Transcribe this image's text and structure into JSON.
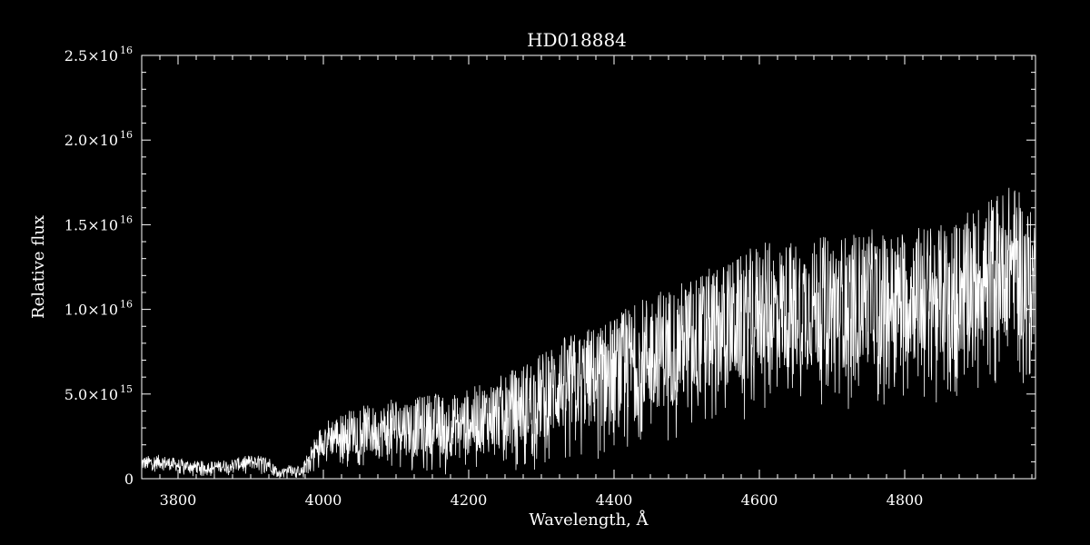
{
  "chart_data": {
    "type": "line",
    "title": "HD018884",
    "xlabel": "Wavelength, Å",
    "ylabel": "Relative flux",
    "xlim": [
      3750,
      4980
    ],
    "ylim": [
      0,
      2.5e+16
    ],
    "x_ticks": [
      3800,
      4000,
      4200,
      4400,
      4600,
      4800
    ],
    "x_tick_labels": [
      "3800",
      "4000",
      "4200",
      "4400",
      "4600",
      "4800"
    ],
    "y_ticks": [
      0,
      5000000000000000.0,
      1e+16,
      1.5e+16,
      2e+16,
      2.5e+16
    ],
    "y_tick_labels": [
      {
        "mantissa": "0",
        "exponent": ""
      },
      {
        "mantissa": "5.0×10",
        "exponent": "15"
      },
      {
        "mantissa": "1.0×10",
        "exponent": "16"
      },
      {
        "mantissa": "1.5×10",
        "exponent": "16"
      },
      {
        "mantissa": "2.0×10",
        "exponent": "16"
      },
      {
        "mantissa": "2.5×10",
        "exponent": "16"
      }
    ],
    "grid": false,
    "colors": {
      "background": "#000000",
      "foreground": "#ffffff"
    },
    "series": [
      {
        "x": [
          3750,
          3775,
          3800,
          3825,
          3850,
          3875,
          3900,
          3925,
          3940,
          3955,
          3970,
          3985,
          4000,
          4025,
          4050,
          4075,
          4100,
          4125,
          4150,
          4175,
          4200,
          4225,
          4250,
          4275,
          4300,
          4325,
          4350,
          4375,
          4400,
          4425,
          4450,
          4475,
          4500,
          4525,
          4550,
          4575,
          4600,
          4625,
          4650,
          4675,
          4700,
          4725,
          4750,
          4775,
          4800,
          4825,
          4850,
          4875,
          4900,
          4925,
          4950,
          4975
        ],
        "y": [
          900000000000000.0,
          1000000000000000.0,
          800000000000000.0,
          700000000000000.0,
          700000000000000.0,
          800000000000000.0,
          1000000000000000.0,
          900000000000000.0,
          300000000000000.0,
          600000000000000.0,
          400000000000000.0,
          1500000000000000.0,
          2400000000000000.0,
          2600000000000000.0,
          3000000000000000.0,
          2700000000000000.0,
          3200000000000000.0,
          3000000000000000.0,
          3300000000000000.0,
          3100000000000000.0,
          3400000000000000.0,
          3600000000000000.0,
          4000000000000000.0,
          4400000000000000.0,
          4800000000000000.0,
          5500000000000000.0,
          5800000000000000.0,
          6000000000000000.0,
          6400000000000000.0,
          6900000000000000.0,
          7600000000000000.0,
          7800000000000000.0,
          8200000000000000.0,
          8600000000000000.0,
          9000000000000000.0,
          9400000000000000.0,
          1.02e+16,
          1e+16,
          1.03e+16,
          1.02e+16,
          1.06e+16,
          1.04e+16,
          1.08e+16,
          1.05e+16,
          1.08e+16,
          1.1e+16,
          1.1e+16,
          1.12e+16,
          1.2e+16,
          1.26e+16,
          1.3e+16,
          1.15e+16
        ],
        "noise": [
          600000000000000.0,
          600000000000000.0,
          550000000000000.0,
          500000000000000.0,
          500000000000000.0,
          550000000000000.0,
          600000000000000.0,
          600000000000000.0,
          300000000000000.0,
          400000000000000.0,
          400000000000000.0,
          1000000000000000.0,
          1500000000000000.0,
          1800000000000000.0,
          2000000000000000.0,
          2200000000000000.0,
          2400000000000000.0,
          2500000000000000.0,
          2600000000000000.0,
          2600000000000000.0,
          2800000000000000.0,
          3000000000000000.0,
          3200000000000000.0,
          3500000000000000.0,
          3800000000000000.0,
          4000000000000000.0,
          4200000000000000.0,
          4400000000000000.0,
          4600000000000000.0,
          4800000000000000.0,
          5000000000000000.0,
          5100000000000000.0,
          5200000000000000.0,
          5300000000000000.0,
          5400000000000000.0,
          5400000000000000.0,
          5500000000000000.0,
          5500000000000000.0,
          5600000000000000.0,
          5600000000000000.0,
          5600000000000000.0,
          5700000000000000.0,
          5700000000000000.0,
          5700000000000000.0,
          5800000000000000.0,
          5800000000000000.0,
          5800000000000000.0,
          5900000000000000.0,
          6000000000000000.0,
          6200000000000000.0,
          6400000000000000.0,
          6000000000000000.0
        ]
      }
    ]
  }
}
